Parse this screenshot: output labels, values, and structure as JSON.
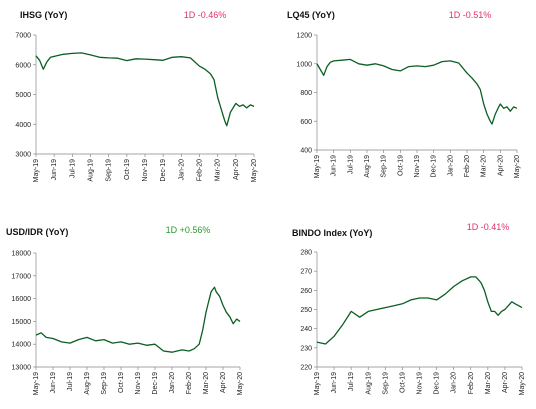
{
  "colors": {
    "line": "#0b5e24",
    "negative": "#e0306a",
    "positive": "#2a9a2a",
    "axis": "#888888"
  },
  "x_months": [
    "May-19",
    "Jun-19",
    "Jul-19",
    "Aug-19",
    "Sep-19",
    "Oct-19",
    "Nov-19",
    "Dec-19",
    "Jan-20",
    "Feb-20",
    "Mar-20",
    "Apr-20",
    "May-20"
  ],
  "chart_data": [
    {
      "type": "line",
      "title": "IHSG (YoY)",
      "delta": "1D -0.46%",
      "delta_sign": "negative",
      "xlabel": "",
      "ylabel": "",
      "ylim": [
        3000,
        7000
      ],
      "yticks": [
        "3000",
        "4000",
        "5000",
        "6000",
        "7000"
      ],
      "xticks": [
        "May-19",
        "Jun-19",
        "Jul-19",
        "Aug-19",
        "Sep-19",
        "Oct-19",
        "Nov-19",
        "Dec-19",
        "Jan-20",
        "Feb-20",
        "Mar-20",
        "Apr-20",
        "May-20"
      ],
      "series": [
        {
          "x": [
            0,
            0.2,
            0.4,
            0.6,
            0.8,
            1,
            1.5,
            2,
            2.5,
            3,
            3.5,
            4,
            4.5,
            5,
            5.5,
            6,
            6.5,
            7,
            7.5,
            8,
            8.5,
            9,
            9.3,
            9.6,
            9.8,
            10,
            10.2,
            10.4,
            10.5,
            10.7,
            10.9,
            11,
            11.2,
            11.4,
            11.6,
            11.8,
            12
          ],
          "values": [
            6300,
            6150,
            5850,
            6100,
            6250,
            6280,
            6350,
            6380,
            6400,
            6330,
            6250,
            6230,
            6220,
            6140,
            6200,
            6190,
            6170,
            6150,
            6250,
            6270,
            6230,
            5950,
            5850,
            5700,
            5500,
            4900,
            4500,
            4100,
            3950,
            4400,
            4600,
            4700,
            4600,
            4650,
            4550,
            4650,
            4600
          ]
        }
      ]
    },
    {
      "type": "line",
      "title": "LQ45 (YoY)",
      "delta": "1D -0.51%",
      "delta_sign": "negative",
      "xlabel": "",
      "ylabel": "",
      "ylim": [
        400,
        1200
      ],
      "yticks": [
        "400",
        "600",
        "800",
        "1000",
        "1200"
      ],
      "xticks": [
        "May-19",
        "Jun-19",
        "Jul-19",
        "Aug-19",
        "Sep-19",
        "Oct-19",
        "Nov-19",
        "Dec-19",
        "Jan-20",
        "Feb-20",
        "Mar-20",
        "Apr-20",
        "May-20"
      ],
      "series": [
        {
          "x": [
            0,
            0.2,
            0.4,
            0.6,
            0.8,
            1,
            1.5,
            2,
            2.5,
            3,
            3.5,
            4,
            4.5,
            5,
            5.5,
            6,
            6.5,
            7,
            7.5,
            8,
            8.5,
            9,
            9.3,
            9.6,
            9.8,
            10,
            10.2,
            10.4,
            10.5,
            10.7,
            10.9,
            11,
            11.2,
            11.4,
            11.6,
            11.8,
            12
          ],
          "values": [
            1000,
            960,
            920,
            980,
            1010,
            1020,
            1025,
            1030,
            1000,
            990,
            1000,
            985,
            960,
            950,
            980,
            985,
            980,
            990,
            1015,
            1020,
            1005,
            935,
            900,
            860,
            820,
            720,
            650,
            600,
            580,
            650,
            700,
            720,
            690,
            700,
            670,
            700,
            690
          ]
        }
      ]
    },
    {
      "type": "line",
      "title": "USD/IDR (YoY)",
      "delta": "1D +0.56%",
      "delta_sign": "positive",
      "xlabel": "",
      "ylabel": "",
      "ylim": [
        13000,
        18000
      ],
      "yticks": [
        "13000",
        "14000",
        "15000",
        "16000",
        "17000",
        "18000"
      ],
      "xticks": [
        "May-19",
        "Jun-19",
        "Jul-19",
        "Aug-19",
        "Sep-19",
        "Oct-19",
        "Nov-19",
        "Dec-19",
        "Jan-20",
        "Feb-20",
        "Mar-20",
        "Apr-20",
        "May-20"
      ],
      "series": [
        {
          "x": [
            0,
            0.3,
            0.6,
            1,
            1.5,
            2,
            2.5,
            3,
            3.5,
            4,
            4.5,
            5,
            5.5,
            6,
            6.5,
            7,
            7.5,
            8,
            8.3,
            8.6,
            9,
            9.3,
            9.6,
            9.8,
            10,
            10.1,
            10.3,
            10.5,
            10.6,
            10.8,
            11,
            11.2,
            11.4,
            11.6,
            11.8,
            12
          ],
          "values": [
            14400,
            14500,
            14300,
            14250,
            14100,
            14050,
            14200,
            14300,
            14150,
            14200,
            14050,
            14100,
            14000,
            14050,
            13950,
            14000,
            13700,
            13650,
            13700,
            13750,
            13700,
            13800,
            14000,
            14600,
            15400,
            15700,
            16300,
            16500,
            16300,
            16100,
            15700,
            15400,
            15200,
            14900,
            15100,
            15000
          ]
        }
      ]
    },
    {
      "type": "line",
      "title": "BINDO Index (YoY)",
      "delta": "1D -0.41%",
      "delta_sign": "negative",
      "xlabel": "",
      "ylabel": "",
      "ylim": [
        220,
        280
      ],
      "yticks": [
        "220",
        "230",
        "240",
        "250",
        "260",
        "270",
        "280"
      ],
      "xticks": [
        "May-19",
        "Jun-19",
        "Jul-19",
        "Aug-19",
        "Sep-19",
        "Oct-19",
        "Nov-19",
        "Dec-19",
        "Jan-20",
        "Feb-20",
        "Mar-20",
        "Apr-20",
        "May-20"
      ],
      "series": [
        {
          "x": [
            0,
            0.5,
            1,
            1.5,
            2,
            2.5,
            3,
            3.5,
            4,
            4.5,
            5,
            5.5,
            6,
            6.5,
            7,
            7.5,
            8,
            8.5,
            9,
            9.3,
            9.6,
            9.8,
            10,
            10.2,
            10.4,
            10.6,
            10.8,
            11,
            11.2,
            11.4,
            11.6,
            11.8,
            12
          ],
          "values": [
            233,
            232,
            236,
            242,
            249,
            246,
            249,
            250,
            251,
            252,
            253,
            255,
            256,
            256,
            255,
            258,
            262,
            265,
            267,
            267,
            264,
            260,
            254,
            249,
            249,
            247,
            249,
            250,
            252,
            254,
            253,
            252,
            251
          ]
        }
      ]
    }
  ]
}
